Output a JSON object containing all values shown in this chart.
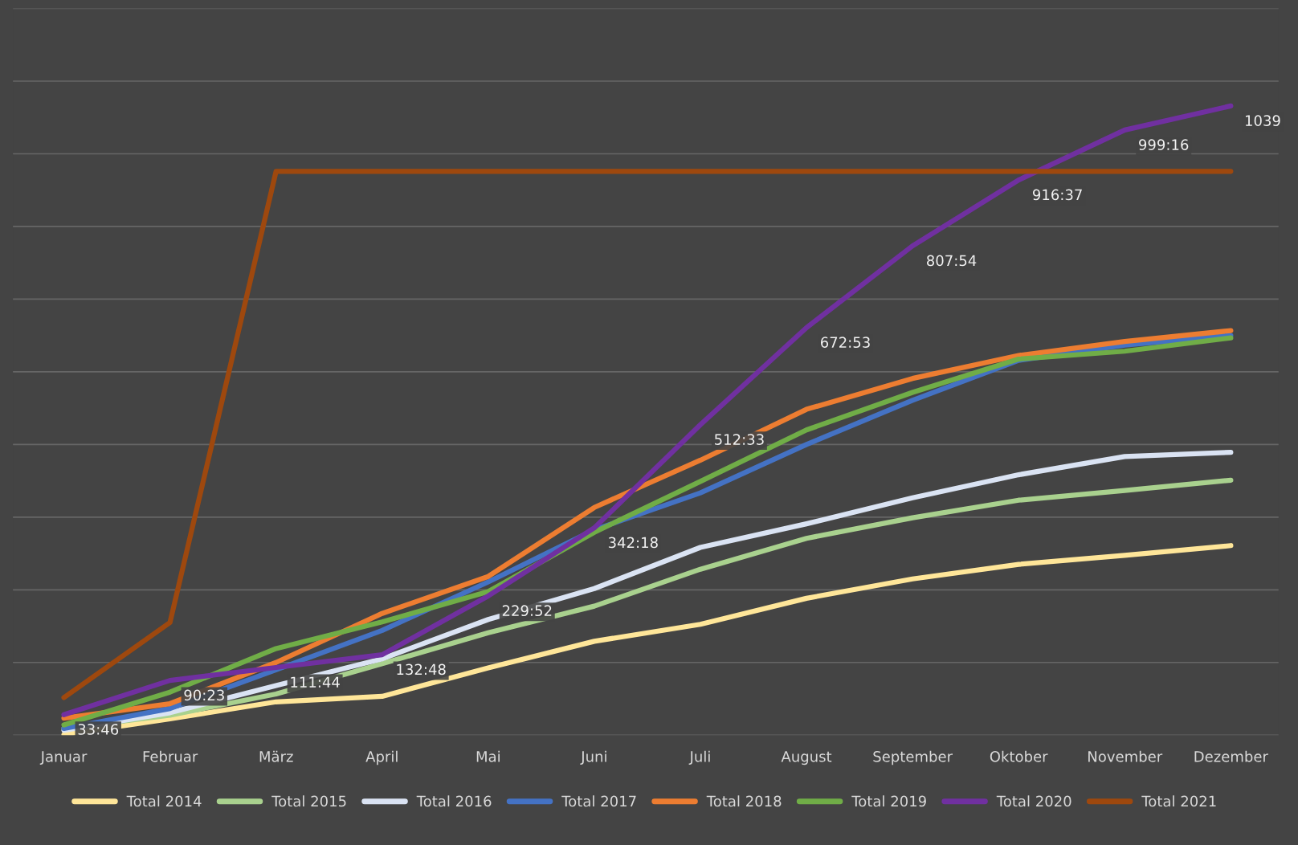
{
  "chart_data": {
    "type": "line",
    "categories": [
      "Januar",
      "Februar",
      "März",
      "April",
      "Mai",
      "Juni",
      "Juli",
      "August",
      "September",
      "Oktober",
      "November",
      "Dezember"
    ],
    "series": [
      {
        "name": "Total 2014",
        "color": "#ffe699",
        "values": [
          1,
          27,
          55,
          64,
          111,
          155,
          183,
          226,
          258,
          282,
          297,
          313
        ]
      },
      {
        "name": "Total 2015",
        "color": "#a9d18e",
        "values": [
          11,
          33,
          68,
          118,
          169,
          213,
          274,
          325,
          359,
          388,
          404,
          421
        ]
      },
      {
        "name": "Total 2016",
        "color": "#dae3f3",
        "values": [
          8,
          37,
          82,
          126,
          191,
          242,
          310,
          349,
          392,
          430,
          460,
          467
        ]
      },
      {
        "name": "Total 2017",
        "color": "#4472c4",
        "values": [
          11,
          44,
          108,
          173,
          253,
          339,
          400,
          480,
          553,
          619,
          644,
          660
        ]
      },
      {
        "name": "Total 2018",
        "color": "#ed7d31",
        "values": [
          28,
          52,
          120,
          201,
          262,
          376,
          454,
          538,
          589,
          627,
          650,
          668
        ]
      },
      {
        "name": "Total 2019",
        "color": "#70ad47",
        "values": [
          17,
          71,
          143,
          187,
          237,
          335,
          419,
          504,
          566,
          621,
          634,
          656
        ]
      },
      {
        "name": "Total 2020",
        "color": "#7030a0",
        "values": [
          33.77,
          90.38,
          111.73,
          132.8,
          229.87,
          342.3,
          512.55,
          672.88,
          807.9,
          916.62,
          999.27,
          1039
        ],
        "value_labels": [
          "33:46",
          "90:23",
          "111:44",
          "132:48",
          "229:52",
          "342:18",
          "512:33",
          "672:53",
          "807:54",
          "916:37",
          "999:16",
          "1039"
        ]
      },
      {
        "name": "Total 2021",
        "color": "#9e480e",
        "values": [
          62,
          186,
          931,
          931,
          931,
          931,
          931,
          931,
          931,
          931,
          931,
          931
        ]
      }
    ],
    "ylim": [
      0,
      1200
    ],
    "yticks": [
      {
        "value": 0,
        "label": null
      },
      {
        "value": 120,
        "label": null
      },
      {
        "value": 240,
        "label": null
      },
      {
        "value": 360,
        "label": null
      },
      {
        "value": 480,
        "label": null
      },
      {
        "value": 600,
        "label": null
      },
      {
        "value": 720,
        "label": null
      },
      {
        "value": 840,
        "label": null
      },
      {
        "value": 960,
        "label": null
      },
      {
        "value": 1080,
        "label": null
      },
      {
        "value": 1200,
        "label": null
      }
    ],
    "grid": "y",
    "legend": "bottom",
    "tick_labels": "x",
    "marker": "none",
    "line_style": "solid"
  }
}
